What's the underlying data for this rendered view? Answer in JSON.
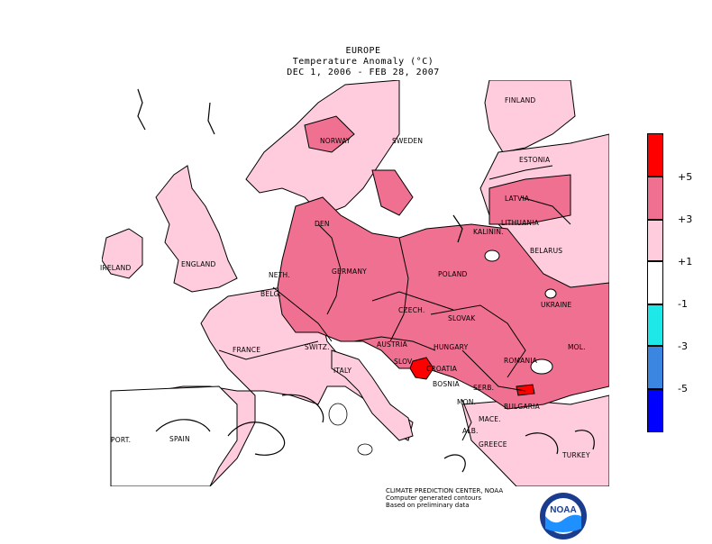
{
  "header": {
    "region": "EUROPE",
    "variable": "Temperature Anomaly (°C)",
    "period": "DEC  1, 2006 - FEB 28, 2007"
  },
  "countries": {
    "finland": "FINLAND",
    "norway": "NORWAY",
    "sweden": "SWEDEN",
    "estonia": "ESTONIA",
    "latvia": "LATVIA",
    "lithuania": "LITHUANIA",
    "kalinin": "KALININ.",
    "belarus": "BELARUS",
    "denmark": "DEN",
    "england": "ENGLAND",
    "ireland": "IRELAND",
    "netherlands": "NETH.",
    "belgium": "BELG.",
    "germany": "GERMANY",
    "poland": "POLAND",
    "czech": "CZECH.",
    "slovakia": "SLOVAK",
    "ukraine": "UKRAINE",
    "france": "FRANCE",
    "switzerland": "SWITZ.",
    "austria": "AUSTRIA",
    "hungary": "HUNGARY",
    "moldova": "MOL.",
    "romania": "ROMANIA",
    "slovenia": "SLOV.",
    "croatia": "CROATIA",
    "italy": "ITALY",
    "bosnia": "BOSNIA",
    "serbia": "SERB.",
    "montenegro": "MON.",
    "bulgaria": "BULGARIA",
    "macedonia": "MACE.",
    "albania": "ALB.",
    "greece": "GREECE",
    "turkey": "TURKEY",
    "portugal": "PORT.",
    "spain": "SPAIN"
  },
  "legend": {
    "labels": [
      "+5",
      "+3",
      "+1",
      "-1",
      "-3",
      "-5"
    ],
    "colors": [
      "#ff0000",
      "#ef7090",
      "#ffccdd",
      "#ffffff",
      "#1ee8e8",
      "#3a86e0",
      "#0000ff"
    ]
  },
  "credits": {
    "line1": "CLIMATE PREDICTION CENTER, NOAA",
    "line2": "Computer generated contours",
    "line3": "Based on preliminary data"
  },
  "logo": {
    "text": "NOAA"
  }
}
